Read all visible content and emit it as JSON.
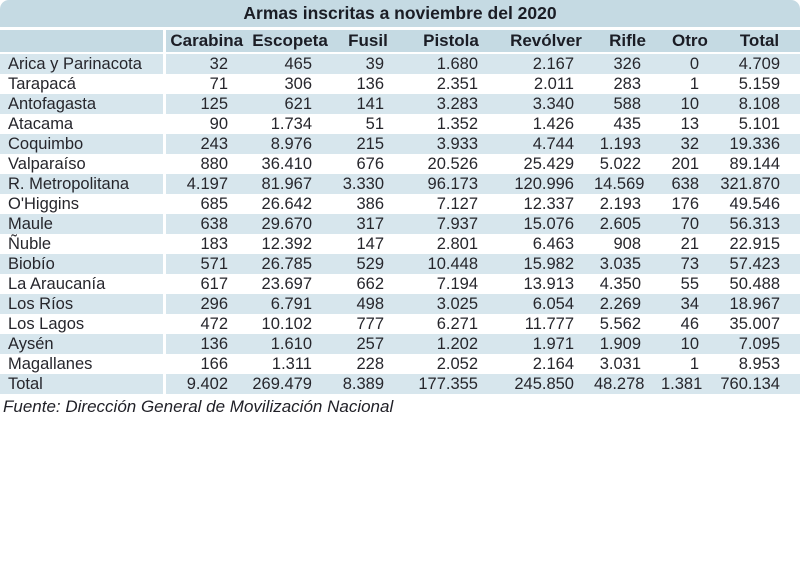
{
  "title": "Armas inscritas a noviembre del 2020",
  "source": "Fuente: Dirección General de Movilización Nacional",
  "colors": {
    "band": "#c5dae3",
    "stripe": "#d7e6ed",
    "row_white": "#ffffff",
    "text": "#26262c"
  },
  "chart_data": {
    "type": "table",
    "title": "Armas inscritas a noviembre del 2020",
    "columns": [
      "Carabina",
      "Escopeta",
      "Fusil",
      "Pistola",
      "Revólver",
      "Rifle",
      "Otro",
      "Total"
    ],
    "row_header_label": "",
    "rows": [
      {
        "region": "Arica y Parinacota",
        "values": [
          "32",
          "465",
          "39",
          "1.680",
          "2.167",
          "326",
          "0",
          "4.709"
        ]
      },
      {
        "region": "Tarapacá",
        "values": [
          "71",
          "306",
          "136",
          "2.351",
          "2.011",
          "283",
          "1",
          "5.159"
        ]
      },
      {
        "region": "Antofagasta",
        "values": [
          "125",
          "621",
          "141",
          "3.283",
          "3.340",
          "588",
          "10",
          "8.108"
        ]
      },
      {
        "region": "Atacama",
        "values": [
          "90",
          "1.734",
          "51",
          "1.352",
          "1.426",
          "435",
          "13",
          "5.101"
        ]
      },
      {
        "region": "Coquimbo",
        "values": [
          "243",
          "8.976",
          "215",
          "3.933",
          "4.744",
          "1.193",
          "32",
          "19.336"
        ]
      },
      {
        "region": "Valparaíso",
        "values": [
          "880",
          "36.410",
          "676",
          "20.526",
          "25.429",
          "5.022",
          "201",
          "89.144"
        ]
      },
      {
        "region": "R. Metropolitana",
        "values": [
          "4.197",
          "81.967",
          "3.330",
          "96.173",
          "120.996",
          "14.569",
          "638",
          "321.870"
        ]
      },
      {
        "region": "O'Higgins",
        "values": [
          "685",
          "26.642",
          "386",
          "7.127",
          "12.337",
          "2.193",
          "176",
          "49.546"
        ]
      },
      {
        "region": "Maule",
        "values": [
          "638",
          "29.670",
          "317",
          "7.937",
          "15.076",
          "2.605",
          "70",
          "56.313"
        ]
      },
      {
        "region": "Ñuble",
        "values": [
          "183",
          "12.392",
          "147",
          "2.801",
          "6.463",
          "908",
          "21",
          "22.915"
        ]
      },
      {
        "region": "Biobío",
        "values": [
          "571",
          "26.785",
          "529",
          "10.448",
          "15.982",
          "3.035",
          "73",
          "57.423"
        ]
      },
      {
        "region": "La Araucanía",
        "values": [
          "617",
          "23.697",
          "662",
          "7.194",
          "13.913",
          "4.350",
          "55",
          "50.488"
        ]
      },
      {
        "region": "Los Ríos",
        "values": [
          "296",
          "6.791",
          "498",
          "3.025",
          "6.054",
          "2.269",
          "34",
          "18.967"
        ]
      },
      {
        "region": "Los Lagos",
        "values": [
          "472",
          "10.102",
          "777",
          "6.271",
          "11.777",
          "5.562",
          "46",
          "35.007"
        ]
      },
      {
        "region": "Aysén",
        "values": [
          "136",
          "1.610",
          "257",
          "1.202",
          "1.971",
          "1.909",
          "10",
          "7.095"
        ]
      },
      {
        "region": "Magallanes",
        "values": [
          "166",
          "1.311",
          "228",
          "2.052",
          "2.164",
          "3.031",
          "1",
          "8.953"
        ]
      }
    ],
    "total": {
      "region": "Total",
      "values": [
        "9.402",
        "269.479",
        "8.389",
        "177.355",
        "245.850",
        "48.278",
        "1.381",
        "760.134"
      ]
    }
  }
}
